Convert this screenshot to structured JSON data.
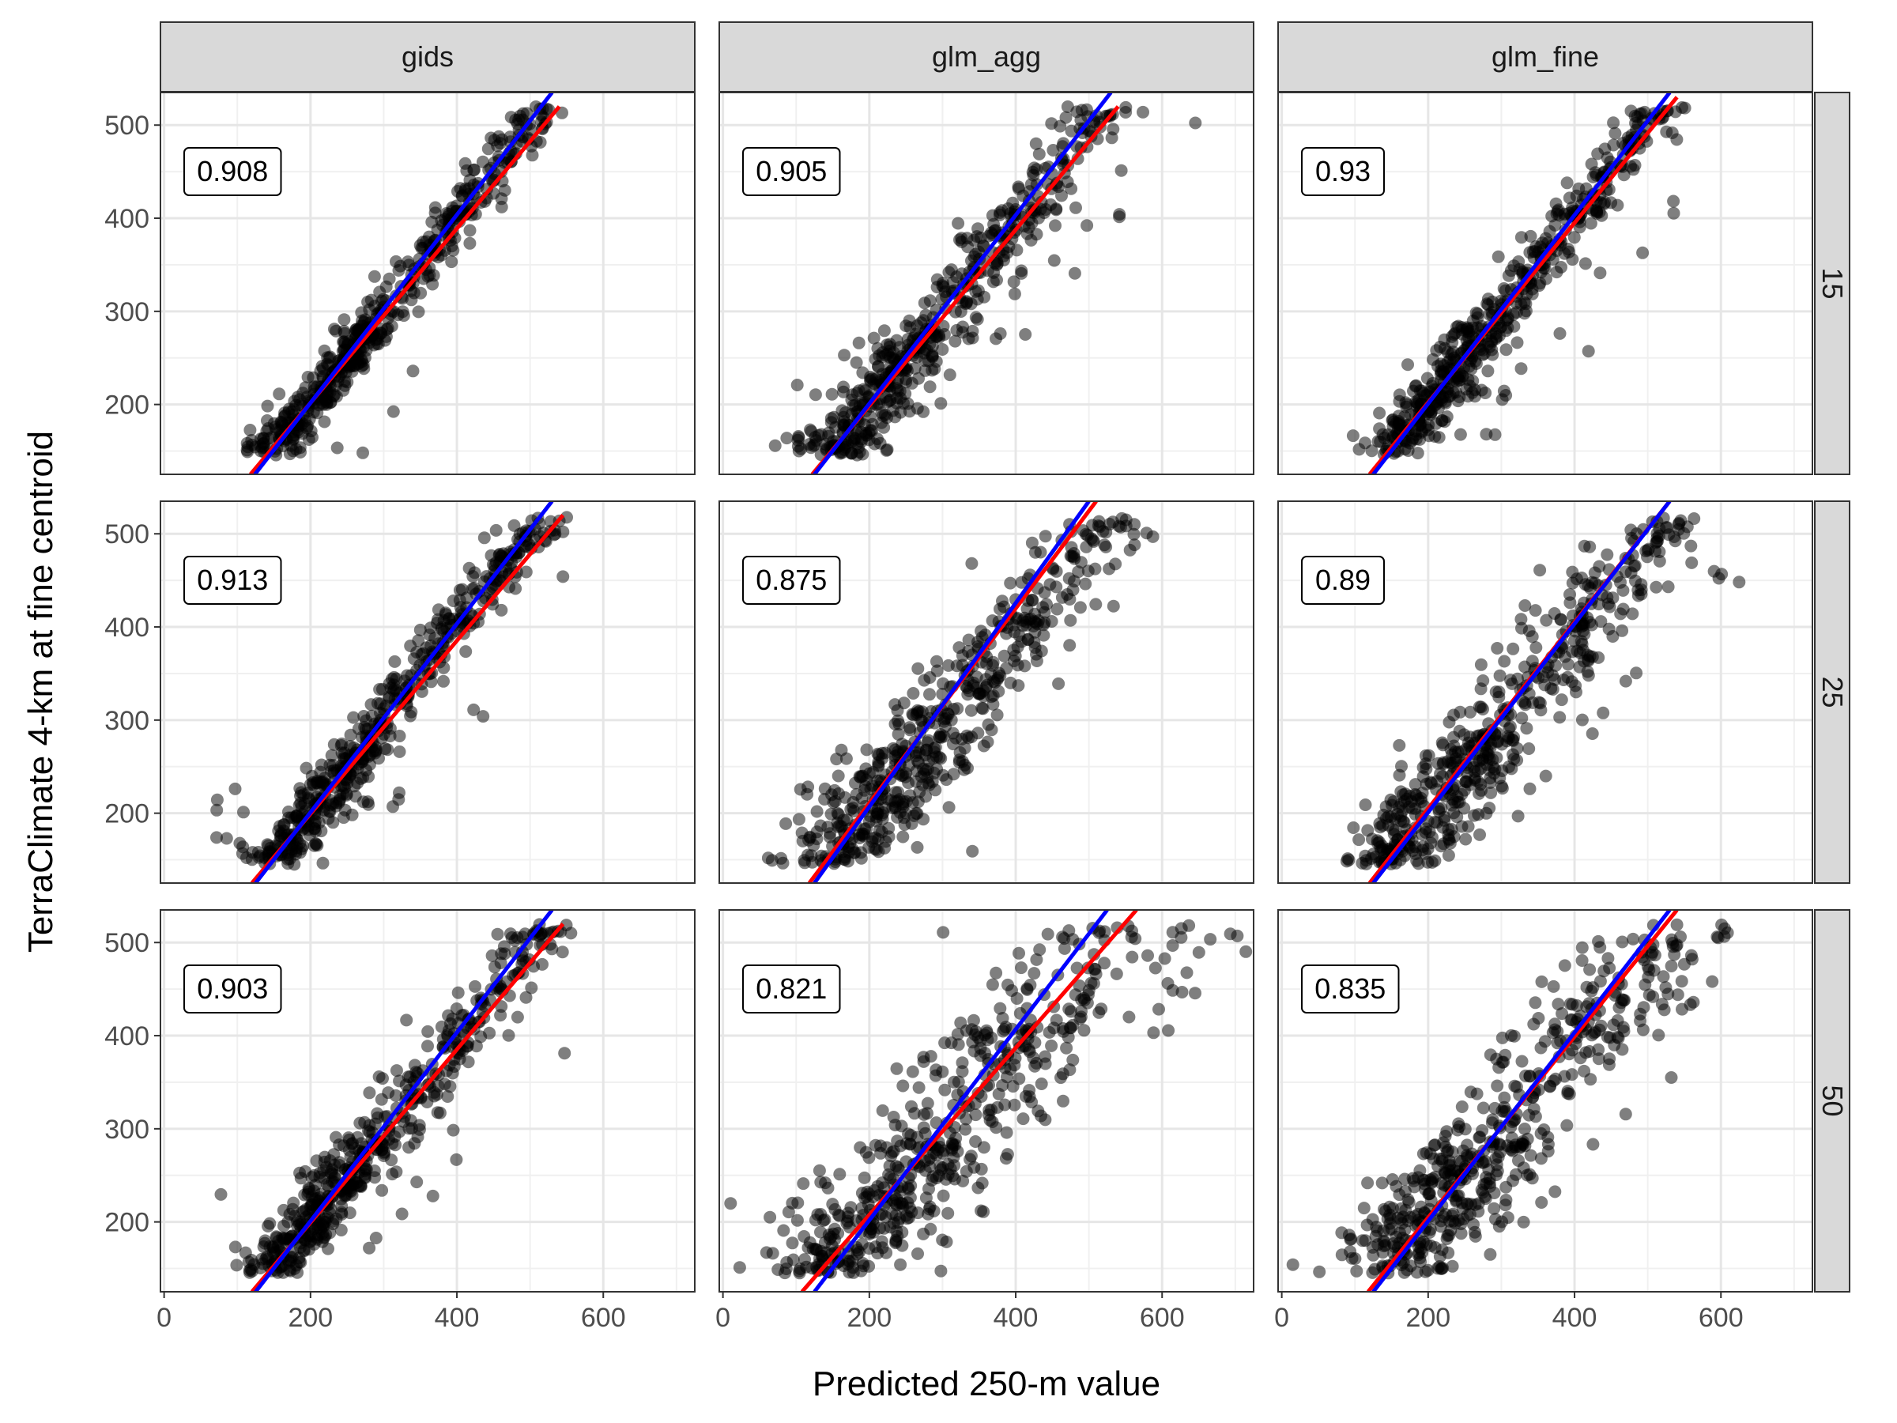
{
  "chart_data": {
    "type": "scatter",
    "title": "",
    "xlabel": "Predicted 250-m value",
    "ylabel": "TerraClimate 4-km at fine centroid",
    "xlim": [
      -5,
      725
    ],
    "ylim": [
      125,
      535
    ],
    "x_ticks": [
      0,
      200,
      400,
      600
    ],
    "y_ticks": [
      200,
      300,
      400,
      500
    ],
    "x_tick_labels": [
      "0",
      "200",
      "400",
      "600"
    ],
    "y_tick_labels": [
      "200",
      "300",
      "400",
      "500"
    ],
    "grid": true,
    "columns": [
      "gids",
      "glm_agg",
      "glm_fine"
    ],
    "rows": [
      "15",
      "25",
      "50"
    ],
    "point_color": "#000000",
    "line_colors": {
      "fit": "#ff0000",
      "reference": "#0000ff"
    },
    "panels": [
      {
        "row": "15",
        "col": "gids",
        "r": "0.908",
        "spread": 18,
        "tail": 0,
        "lowStart": 110,
        "fit": {
          "x": [
            118,
            540
          ],
          "y": [
            125,
            520
          ]
        },
        "ref": {
          "x": [
            124,
            530
          ],
          "y": [
            125,
            535
          ]
        }
      },
      {
        "row": "15",
        "col": "glm_agg",
        "r": "0.905",
        "spread": 28,
        "tail": 0,
        "lowStart": 70,
        "fit": {
          "x": [
            122,
            540
          ],
          "y": [
            125,
            520
          ]
        },
        "ref": {
          "x": [
            125,
            530
          ],
          "y": [
            125,
            535
          ]
        }
      },
      {
        "row": "15",
        "col": "glm_fine",
        "r": "0.93",
        "spread": 22,
        "tail": 0,
        "lowStart": 130,
        "fit": {
          "x": [
            120,
            540
          ],
          "y": [
            125,
            530
          ]
        },
        "ref": {
          "x": [
            125,
            530
          ],
          "y": [
            125,
            535
          ]
        }
      },
      {
        "row": "25",
        "col": "gids",
        "r": "0.913",
        "spread": 20,
        "tail": 0,
        "lowStart": 60,
        "fit": {
          "x": [
            120,
            545
          ],
          "y": [
            125,
            520
          ]
        },
        "ref": {
          "x": [
            125,
            530
          ],
          "y": [
            125,
            535
          ]
        }
      },
      {
        "row": "25",
        "col": "glm_agg",
        "r": "0.875",
        "spread": 38,
        "tail": 70,
        "lowStart": 100,
        "fit": {
          "x": [
            118,
            510
          ],
          "y": [
            125,
            535
          ]
        },
        "ref": {
          "x": [
            125,
            500
          ],
          "y": [
            125,
            535
          ]
        }
      },
      {
        "row": "25",
        "col": "glm_fine",
        "r": "0.89",
        "spread": 38,
        "tail": 60,
        "lowStart": 100,
        "fit": {
          "x": [
            120,
            530
          ],
          "y": [
            125,
            535
          ]
        },
        "ref": {
          "x": [
            125,
            530
          ],
          "y": [
            125,
            535
          ]
        }
      },
      {
        "row": "50",
        "col": "gids",
        "r": "0.903",
        "spread": 24,
        "tail": 0,
        "lowStart": 40,
        "fit": {
          "x": [
            120,
            545
          ],
          "y": [
            125,
            520
          ]
        },
        "ref": {
          "x": [
            125,
            530
          ],
          "y": [
            125,
            535
          ]
        }
      },
      {
        "row": "50",
        "col": "glm_agg",
        "r": "0.821",
        "spread": 55,
        "tail": 150,
        "lowStart": 100,
        "fit": {
          "x": [
            108,
            565
          ],
          "y": [
            125,
            535
          ]
        },
        "ref": {
          "x": [
            125,
            525
          ],
          "y": [
            125,
            535
          ]
        }
      },
      {
        "row": "50",
        "col": "glm_fine",
        "r": "0.835",
        "spread": 48,
        "tail": 100,
        "lowStart": 110,
        "fit": {
          "x": [
            118,
            540
          ],
          "y": [
            125,
            535
          ]
        },
        "ref": {
          "x": [
            125,
            530
          ],
          "y": [
            125,
            535
          ]
        }
      }
    ]
  }
}
